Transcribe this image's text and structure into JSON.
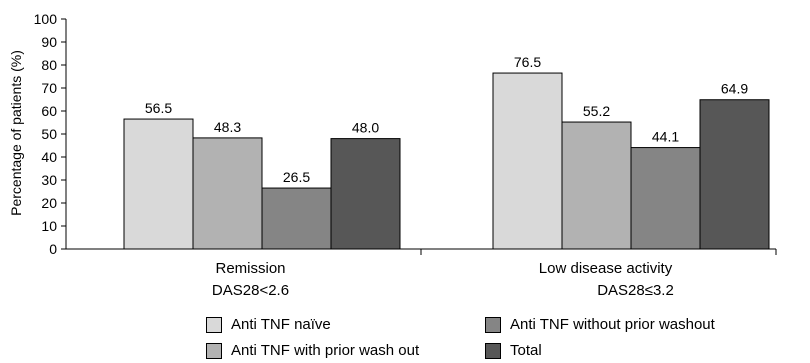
{
  "chart_data": {
    "type": "bar",
    "ylabel": "Percentage of patients (%)",
    "xlabel": "",
    "ylim": [
      0,
      100
    ],
    "yticks": [
      0,
      10,
      20,
      30,
      40,
      50,
      60,
      70,
      80,
      90,
      100
    ],
    "grid": false,
    "legend_position": "bottom",
    "categories": [
      {
        "line1": "Remission",
        "line2": "DAS28<2.6"
      },
      {
        "line1": "Low disease activity",
        "line2": "DAS28≤3.2"
      }
    ],
    "series": [
      {
        "name": "Anti TNF naïve",
        "values": [
          56.5,
          76.5
        ],
        "labels": [
          "56.5",
          "76.5"
        ],
        "color": "#d9d9d9"
      },
      {
        "name": "Anti TNF with prior wash out",
        "values": [
          48.3,
          55.2
        ],
        "labels": [
          "48.3",
          "55.2"
        ],
        "color": "#b2b2b2"
      },
      {
        "name": "Anti TNF without prior washout",
        "values": [
          26.5,
          44.1
        ],
        "labels": [
          "26.5",
          "44.1"
        ],
        "color": "#858585"
      },
      {
        "name": "Total",
        "values": [
          48.0,
          64.9
        ],
        "labels": [
          "48.0",
          "64.9"
        ],
        "color": "#575757"
      }
    ]
  }
}
